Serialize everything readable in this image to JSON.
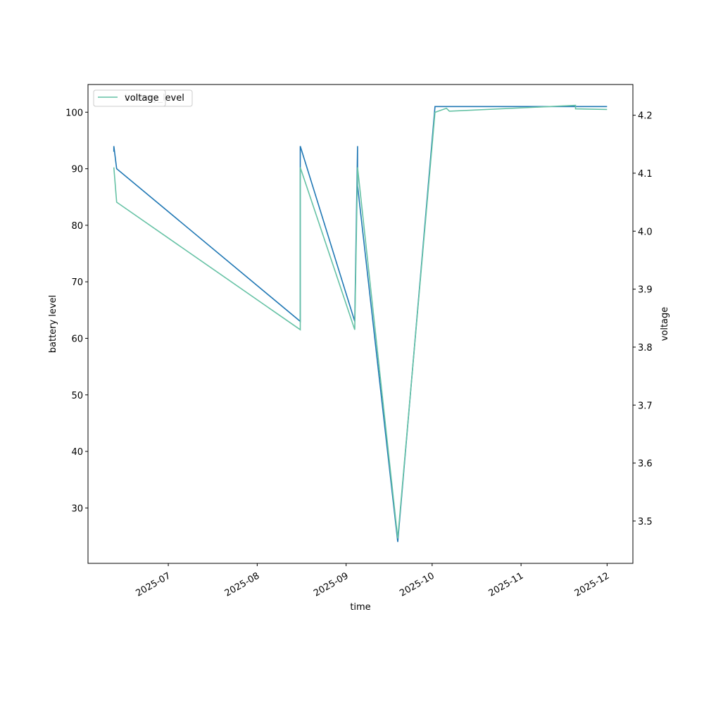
{
  "chart_data": {
    "type": "line",
    "xlabel": "time",
    "ylabel": "battery level",
    "y2label": "voltage",
    "xlim": [
      "2025-06-03",
      "2025-12-10"
    ],
    "xticks": [
      {
        "value": "2025-07-01",
        "label": "2025-07"
      },
      {
        "value": "2025-08-01",
        "label": "2025-08"
      },
      {
        "value": "2025-09-01",
        "label": "2025-09"
      },
      {
        "value": "2025-10-01",
        "label": "2025-10"
      },
      {
        "value": "2025-11-01",
        "label": "2025-11"
      },
      {
        "value": "2025-12-01",
        "label": "2025-12"
      }
    ],
    "ylim": [
      20.2,
      104.9
    ],
    "yticks": [
      30,
      40,
      50,
      60,
      70,
      80,
      90,
      100
    ],
    "y2lim": [
      3.427,
      4.253
    ],
    "y2ticks": [
      3.5,
      3.6,
      3.7,
      3.8,
      3.9,
      {
        "value": 4,
        "label": "4.0"
      },
      4.1,
      4.2
    ],
    "legend": "upper left",
    "series": [
      {
        "name": "battery_level",
        "color": "#1f77b4",
        "axis": "y",
        "x": [
          "2025-06-12",
          "2025-06-12",
          "2025-06-12",
          "2025-06-13",
          "2025-08-16",
          "2025-08-16",
          "2025-09-04",
          "2025-09-05",
          "2025-09-05",
          "2025-09-19",
          "2025-10-02",
          "2025-11-20",
          "2025-12-01"
        ],
        "values": [
          94,
          93,
          94,
          90,
          63,
          94,
          63,
          94,
          87,
          24,
          101,
          101,
          101
        ]
      },
      {
        "name": "voltage",
        "color": "#66c2a5",
        "axis": "y2",
        "x": [
          "2025-06-12",
          "2025-06-12",
          "2025-06-13",
          "2025-08-16",
          "2025-08-16",
          "2025-09-04",
          "2025-09-05",
          "2025-09-19",
          "2025-10-02",
          "2025-10-06",
          "2025-10-07",
          "2025-11-20",
          "2025-11-20",
          "2025-12-01"
        ],
        "values": [
          4.11,
          4.11,
          4.05,
          3.83,
          4.11,
          3.83,
          4.11,
          3.47,
          4.205,
          4.212,
          4.207,
          4.217,
          4.211,
          4.21
        ]
      }
    ]
  }
}
